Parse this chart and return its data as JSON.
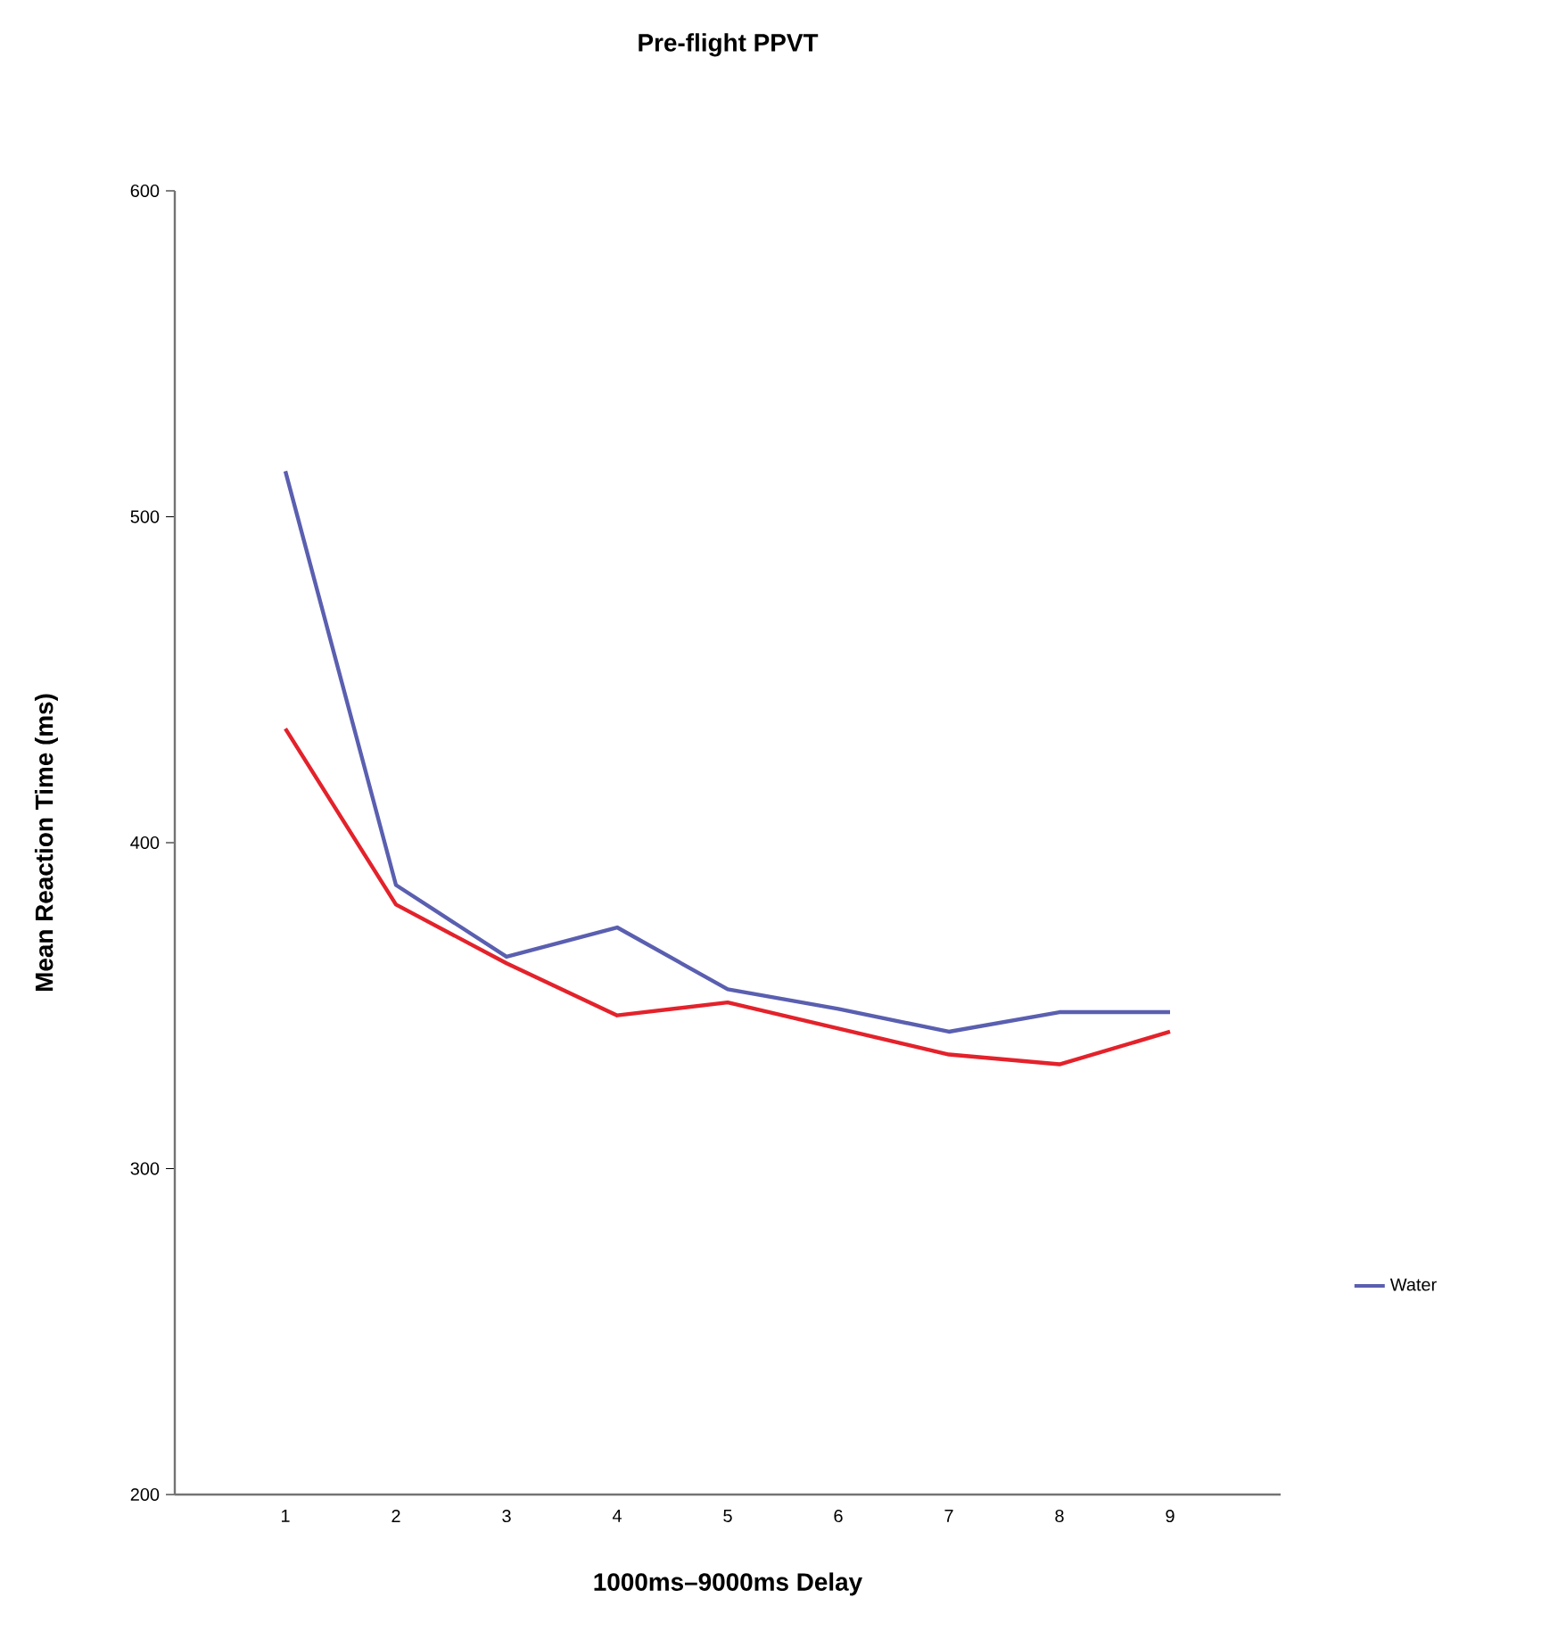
{
  "chart_data": {
    "type": "line",
    "title": "Pre-flight PPVT",
    "xlabel": "1000ms–9000ms Delay",
    "ylabel": "Mean Reaction Time (ms)",
    "x": [
      1,
      2,
      3,
      4,
      5,
      6,
      7,
      8,
      9
    ],
    "series": [
      {
        "name": "Water",
        "color": "#5a5fb0",
        "values": [
          514,
          387,
          365,
          374,
          355,
          349,
          342,
          348,
          348
        ]
      },
      {
        "color": "#e3222b",
        "values": [
          435,
          381,
          363,
          347,
          351,
          343,
          335,
          332,
          342
        ]
      }
    ],
    "xlim": [
      0,
      10
    ],
    "xticks": [
      1,
      2,
      3,
      4,
      5,
      6,
      7,
      8,
      9
    ],
    "ylim": [
      200,
      600
    ],
    "yticks": [
      200,
      300,
      400,
      500,
      600
    ],
    "legend": "right",
    "grid": false,
    "marker": "none",
    "line_style": "solid"
  }
}
